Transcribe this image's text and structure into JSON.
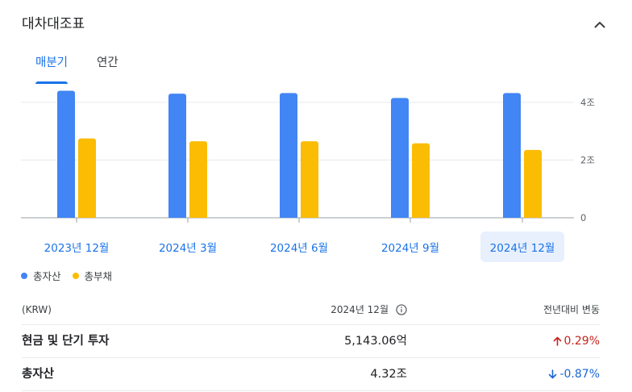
{
  "header": {
    "title": "대차대조표",
    "collapse_icon": "chevron-up-icon"
  },
  "tabs": [
    {
      "label": "매분기",
      "active": true
    },
    {
      "label": "연간",
      "active": false
    }
  ],
  "chart_data": {
    "type": "bar",
    "categories": [
      "2023년 12월",
      "2024년 3월",
      "2024년 6월",
      "2024년 9월",
      "2024년 12월"
    ],
    "series": [
      {
        "name": "총자산",
        "values": [
          4.4,
          4.3,
          4.32,
          4.15,
          4.32
        ],
        "color": "#4285f4"
      },
      {
        "name": "총부채",
        "values": [
          2.75,
          2.65,
          2.65,
          2.58,
          2.35
        ],
        "color": "#fbbc04"
      }
    ],
    "y_ticks": [
      {
        "value": 0,
        "label": "0"
      },
      {
        "value": 2,
        "label": "2조"
      },
      {
        "value": 4,
        "label": "4조"
      }
    ],
    "ylim": [
      0,
      4.75
    ],
    "grid": true,
    "selected_index": 4
  },
  "legend": [
    {
      "label": "총자산",
      "color": "#4285f4"
    },
    {
      "label": "총부채",
      "color": "#fbbc04"
    }
  ],
  "table": {
    "header": {
      "unit": "(KRW)",
      "period": "2024년 12월",
      "change": "전년대비 변동",
      "info_icon": "info-icon"
    },
    "rows": [
      {
        "label": "현금 및 단기 투자",
        "value": "5,143.06억",
        "change": "0.29%",
        "direction": "up",
        "arrow": "arrow-up-icon"
      },
      {
        "label": "총자산",
        "value": "4.32조",
        "change": "-0.87%",
        "direction": "down",
        "arrow": "arrow-down-icon"
      }
    ]
  }
}
